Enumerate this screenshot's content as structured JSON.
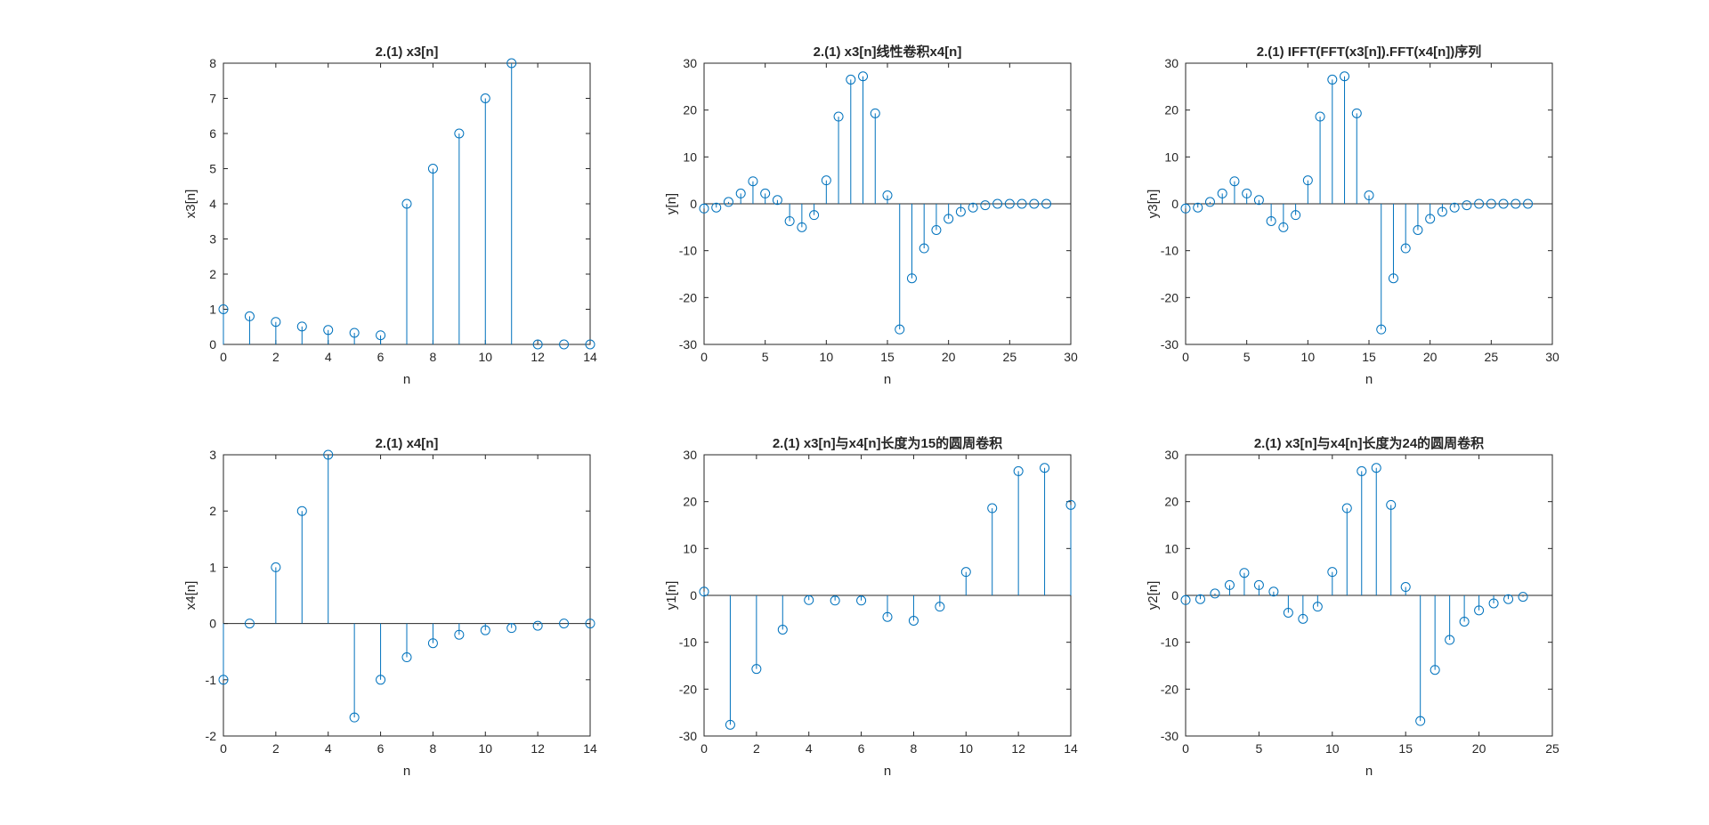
{
  "colors": {
    "stem": "#0072BD",
    "axis": "#262626",
    "background": "#ffffff"
  },
  "chart_data": [
    {
      "type": "stem",
      "title": "2.(1) x3[n]",
      "xlabel": "n",
      "ylabel": "x3[n]",
      "xlim": [
        0,
        14
      ],
      "ylim": [
        0,
        8
      ],
      "xticks": [
        0,
        2,
        4,
        6,
        8,
        10,
        12,
        14
      ],
      "yticks": [
        0,
        1,
        2,
        3,
        4,
        5,
        6,
        7,
        8
      ],
      "x": [
        0,
        1,
        2,
        3,
        4,
        5,
        6,
        7,
        8,
        9,
        10,
        11,
        12,
        13,
        14
      ],
      "values": [
        1,
        0.8,
        0.64,
        0.51,
        0.41,
        0.33,
        0.26,
        4,
        5,
        6,
        7,
        8,
        0,
        0,
        0
      ]
    },
    {
      "type": "stem",
      "title": "2.(1) x3[n]线性卷积x4[n]",
      "xlabel": "n",
      "ylabel": "y[n]",
      "xlim": [
        0,
        30
      ],
      "ylim": [
        -30,
        30
      ],
      "xticks": [
        0,
        5,
        10,
        15,
        20,
        25,
        30
      ],
      "yticks": [
        -30,
        -20,
        -10,
        0,
        10,
        20,
        30
      ],
      "x": [
        0,
        1,
        2,
        3,
        4,
        5,
        6,
        7,
        8,
        9,
        10,
        11,
        12,
        13,
        14,
        15,
        16,
        17,
        18,
        19,
        20,
        21,
        22,
        23,
        24,
        25,
        26,
        27,
        28
      ],
      "values": [
        -1,
        -0.8,
        0.4,
        2.2,
        4.8,
        2.2,
        0.8,
        -3.7,
        -5,
        -2.4,
        5,
        18.6,
        26.5,
        27.2,
        19.3,
        1.8,
        -26.8,
        -15.9,
        -9.5,
        -5.6,
        -3.2,
        -1.7,
        -0.8,
        -0.3,
        0,
        0,
        0,
        0,
        0
      ]
    },
    {
      "type": "stem",
      "title": "2.(1) IFFT(FFT(x3[n]).FFT(x4[n])序列",
      "xlabel": "n",
      "ylabel": "y3[n]",
      "xlim": [
        0,
        30
      ],
      "ylim": [
        -30,
        30
      ],
      "xticks": [
        0,
        5,
        10,
        15,
        20,
        25,
        30
      ],
      "yticks": [
        -30,
        -20,
        -10,
        0,
        10,
        20,
        30
      ],
      "x": [
        0,
        1,
        2,
        3,
        4,
        5,
        6,
        7,
        8,
        9,
        10,
        11,
        12,
        13,
        14,
        15,
        16,
        17,
        18,
        19,
        20,
        21,
        22,
        23,
        24,
        25,
        26,
        27,
        28
      ],
      "values": [
        -1,
        -0.8,
        0.4,
        2.2,
        4.8,
        2.2,
        0.8,
        -3.7,
        -5,
        -2.4,
        5,
        18.6,
        26.5,
        27.2,
        19.3,
        1.8,
        -26.8,
        -15.9,
        -9.5,
        -5.6,
        -3.2,
        -1.7,
        -0.8,
        -0.3,
        0,
        0,
        0,
        0,
        0
      ]
    },
    {
      "type": "stem",
      "title": "2.(1) x4[n]",
      "xlabel": "n",
      "ylabel": "x4[n]",
      "xlim": [
        0,
        14
      ],
      "ylim": [
        -2,
        3
      ],
      "xticks": [
        0,
        2,
        4,
        6,
        8,
        10,
        12,
        14
      ],
      "yticks": [
        -2,
        -1,
        0,
        1,
        2,
        3
      ],
      "x": [
        0,
        1,
        2,
        3,
        4,
        5,
        6,
        7,
        8,
        9,
        10,
        11,
        12,
        13,
        14
      ],
      "values": [
        -1,
        0,
        1,
        2,
        3,
        -1.67,
        -1,
        -0.6,
        -0.35,
        -0.2,
        -0.12,
        -0.08,
        -0.04,
        0,
        0
      ]
    },
    {
      "type": "stem",
      "title": "2.(1) x3[n]与x4[n]长度为15的圆周卷积",
      "xlabel": "n",
      "ylabel": "y1[n]",
      "xlim": [
        0,
        14
      ],
      "ylim": [
        -30,
        30
      ],
      "xticks": [
        0,
        2,
        4,
        6,
        8,
        10,
        12,
        14
      ],
      "yticks": [
        -30,
        -20,
        -10,
        0,
        10,
        20,
        30
      ],
      "x": [
        0,
        1,
        2,
        3,
        4,
        5,
        6,
        7,
        8,
        9,
        10,
        11,
        12,
        13,
        14
      ],
      "values": [
        0.8,
        -27.6,
        -15.7,
        -7.3,
        -1,
        -1.1,
        -1.1,
        -4.6,
        -5.4,
        -2.4,
        5,
        18.6,
        26.5,
        27.2,
        19.3
      ]
    },
    {
      "type": "stem",
      "title": "2.(1) x3[n]与x4[n]长度为24的圆周卷积",
      "xlabel": "n",
      "ylabel": "y2[n]",
      "xlim": [
        0,
        25
      ],
      "ylim": [
        -30,
        30
      ],
      "xticks": [
        0,
        5,
        10,
        15,
        20,
        25
      ],
      "yticks": [
        -30,
        -20,
        -10,
        0,
        10,
        20,
        30
      ],
      "x": [
        0,
        1,
        2,
        3,
        4,
        5,
        6,
        7,
        8,
        9,
        10,
        11,
        12,
        13,
        14,
        15,
        16,
        17,
        18,
        19,
        20,
        21,
        22,
        23
      ],
      "values": [
        -1,
        -0.8,
        0.4,
        2.2,
        4.8,
        2.2,
        0.8,
        -3.7,
        -5,
        -2.4,
        5,
        18.6,
        26.5,
        27.2,
        19.3,
        1.8,
        -26.8,
        -15.9,
        -9.5,
        -5.6,
        -3.2,
        -1.7,
        -0.8,
        -0.3
      ]
    }
  ]
}
